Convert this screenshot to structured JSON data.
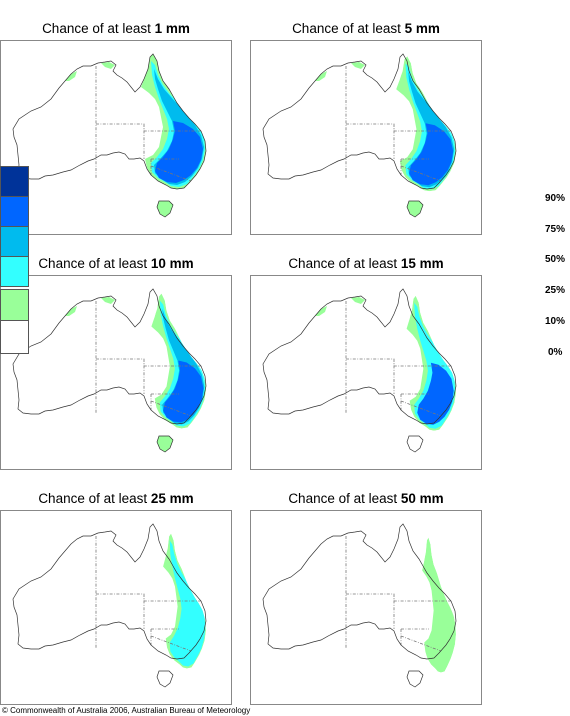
{
  "panels": [
    {
      "prefix": "Chance of at least ",
      "amount": "1 mm",
      "level": 6
    },
    {
      "prefix": "Chance of at least ",
      "amount": "5 mm",
      "level": 5
    },
    {
      "prefix": "Chance of at least ",
      "amount": "10 mm",
      "level": 4
    },
    {
      "prefix": "Chance of at least ",
      "amount": "15 mm",
      "level": 3
    },
    {
      "prefix": "Chance of at least ",
      "amount": "25 mm",
      "level": 2
    },
    {
      "prefix": "Chance of at least ",
      "amount": "50 mm",
      "level": 1
    }
  ],
  "legend": {
    "labels": [
      "90%",
      "75%",
      "50%",
      "25%",
      "10%",
      "0%"
    ],
    "colors": [
      "#003399",
      "#0066ff",
      "#00bbee",
      "#33ffff",
      "#99ff99",
      "#ffffff"
    ]
  },
  "map_colors": {
    "light_green": "#99ff99",
    "cyan": "#33ffff",
    "sky": "#00bbee",
    "blue": "#0066ff",
    "coast": "#333333",
    "border": "#777777"
  },
  "footer": {
    "copyright": "© Commonwealth of Australia 2006, Australian Bureau of Meteorology"
  }
}
